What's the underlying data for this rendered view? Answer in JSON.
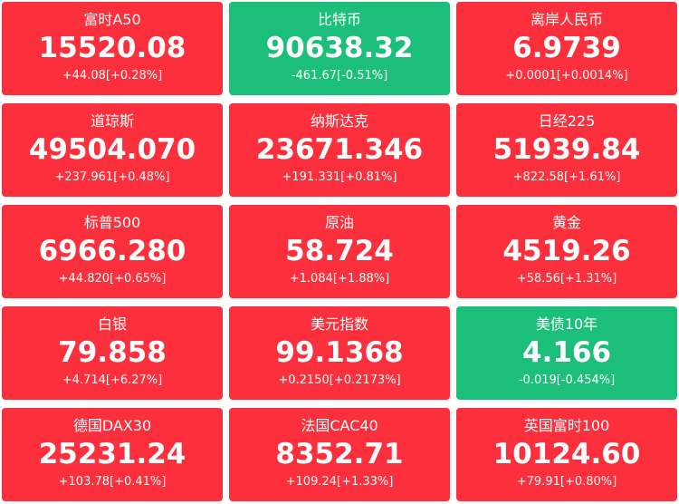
{
  "colors": {
    "up": "#fc2f3c",
    "down": "#1cbf7a",
    "text": "#ffffff"
  },
  "quotes": [
    {
      "name": "富时A50",
      "price": "15520.08",
      "change": "+44.08[+0.28%]",
      "trend": "up"
    },
    {
      "name": "比特币",
      "price": "90638.32",
      "change": "-461.67[-0.51%]",
      "trend": "down"
    },
    {
      "name": "离岸人民币",
      "price": "6.9739",
      "change": "+0.0001[+0.0014%]",
      "trend": "up"
    },
    {
      "name": "道琼斯",
      "price": "49504.070",
      "change": "+237.961[+0.48%]",
      "trend": "up"
    },
    {
      "name": "纳斯达克",
      "price": "23671.346",
      "change": "+191.331[+0.81%]",
      "trend": "up"
    },
    {
      "name": "日经225",
      "price": "51939.84",
      "change": "+822.58[+1.61%]",
      "trend": "up"
    },
    {
      "name": "标普500",
      "price": "6966.280",
      "change": "+44.820[+0.65%]",
      "trend": "up"
    },
    {
      "name": "原油",
      "price": "58.724",
      "change": "+1.084[+1.88%]",
      "trend": "up"
    },
    {
      "name": "黄金",
      "price": "4519.26",
      "change": "+58.56[+1.31%]",
      "trend": "up"
    },
    {
      "name": "白银",
      "price": "79.858",
      "change": "+4.714[+6.27%]",
      "trend": "up"
    },
    {
      "name": "美元指数",
      "price": "99.1368",
      "change": "+0.2150[+0.2173%]",
      "trend": "up"
    },
    {
      "name": "美债10年",
      "price": "4.166",
      "change": "-0.019[-0.454%]",
      "trend": "down"
    },
    {
      "name": "德国DAX30",
      "price": "25231.24",
      "change": "+103.78[+0.41%]",
      "trend": "up"
    },
    {
      "name": "法国CAC40",
      "price": "8352.71",
      "change": "+109.24[+1.33%]",
      "trend": "up"
    },
    {
      "name": "英国富时100",
      "price": "10124.60",
      "change": "+79.91[+0.80%]",
      "trend": "up"
    }
  ]
}
